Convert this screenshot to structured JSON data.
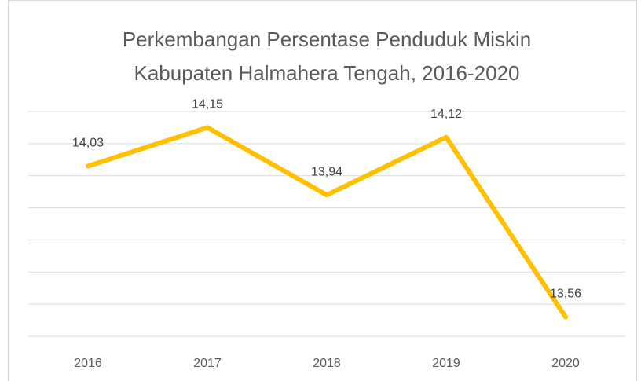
{
  "chart_data": {
    "type": "line",
    "title": [
      "Perkembangan Persentase Penduduk Miskin",
      "Kabupaten Halmahera Tengah, 2016-2020"
    ],
    "categories": [
      "2016",
      "2017",
      "2018",
      "2019",
      "2020"
    ],
    "values": [
      14.03,
      14.15,
      13.94,
      14.12,
      13.56
    ],
    "value_labels": [
      "14,03",
      "14,15",
      "13,94",
      "14,12",
      "13,56"
    ],
    "color": "#ffc000",
    "ylim": [
      13.5,
      14.2
    ],
    "yticks": [
      13.5,
      13.6,
      13.7,
      13.8,
      13.9,
      14.0,
      14.1,
      14.2
    ],
    "grid": true
  }
}
